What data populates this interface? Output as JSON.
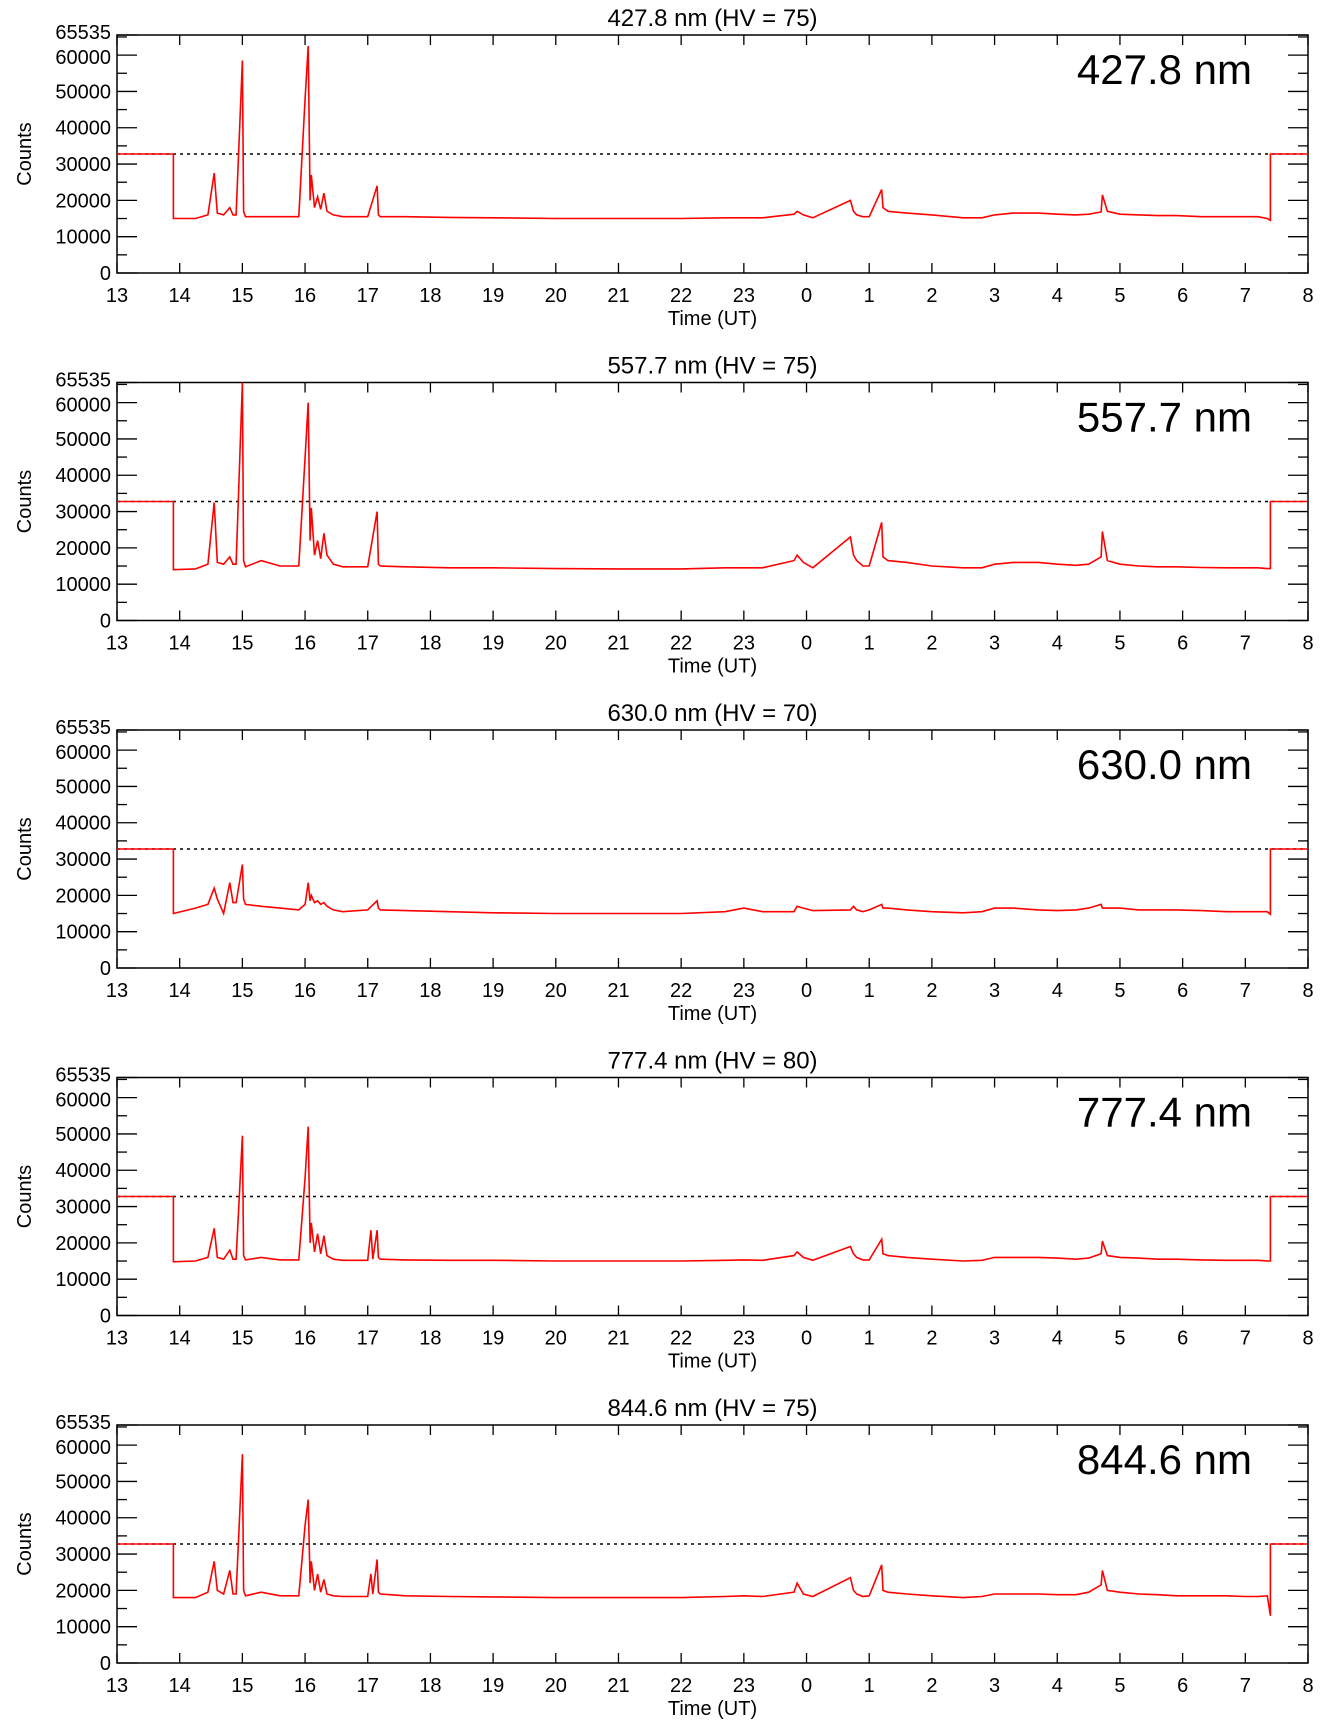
{
  "figure": {
    "ylabel": "Counts",
    "xlabel": "Time (UT)",
    "xtick_labels": [
      "13",
      "14",
      "15",
      "16",
      "17",
      "18",
      "19",
      "20",
      "21",
      "22",
      "23",
      "0",
      "1",
      "2",
      "3",
      "4",
      "5",
      "6",
      "7",
      "8"
    ],
    "ytick_labels": [
      "0",
      "10000",
      "20000",
      "30000",
      "40000",
      "50000",
      "60000",
      "65535"
    ],
    "colors": {
      "series": "#ff0000",
      "axes": "#000000",
      "threshold": "#000000"
    }
  },
  "chart_data": [
    {
      "type": "line",
      "title": "427.8 nm (HV = 75)",
      "big_label": "427.8 nm",
      "xlabel": "Time (UT)",
      "ylabel": "Counts",
      "xlim": [
        13,
        32
      ],
      "ylim": [
        0,
        65535
      ],
      "threshold": 32768,
      "series": [
        {
          "name": "427.8 nm",
          "x": [
            13.9,
            13.9,
            14.25,
            14.45,
            14.55,
            14.6,
            14.7,
            14.8,
            14.85,
            14.9,
            15.0,
            15.02,
            15.05,
            15.3,
            15.6,
            15.9,
            16.0,
            16.05,
            16.08,
            16.1,
            16.15,
            16.2,
            16.25,
            16.3,
            16.35,
            16.45,
            16.6,
            17.0,
            17.15,
            17.17,
            17.2,
            17.6,
            18.3,
            19.0,
            20.0,
            21.0,
            22.0,
            22.7,
            23.0,
            23.3,
            23.8,
            23.85,
            23.95,
            24.1,
            24.7,
            24.75,
            24.8,
            24.9,
            25.0,
            25.2,
            25.22,
            25.3,
            25.6,
            26.0,
            26.5,
            26.8,
            27.0,
            27.3,
            27.7,
            28.0,
            28.3,
            28.5,
            28.7,
            28.72,
            28.8,
            29.0,
            29.3,
            29.6,
            29.9,
            30.3,
            30.7,
            31.0,
            31.2,
            31.35,
            31.4,
            31.4
          ],
          "y": [
            32768,
            15000,
            15000,
            16000,
            27500,
            16500,
            16000,
            18000,
            16000,
            16000,
            58500,
            17000,
            15500,
            15500,
            15500,
            15500,
            48000,
            62500,
            20000,
            27000,
            18000,
            21000,
            17500,
            22000,
            17000,
            16000,
            15500,
            15500,
            24000,
            16000,
            15500,
            15500,
            15300,
            15200,
            15000,
            15000,
            15000,
            15200,
            15200,
            15200,
            16200,
            17000,
            16000,
            15200,
            20000,
            17000,
            16000,
            15500,
            15500,
            23000,
            18000,
            17000,
            16500,
            16000,
            15200,
            15200,
            16000,
            16500,
            16500,
            16200,
            16000,
            16200,
            16800,
            21500,
            17000,
            16200,
            16000,
            15800,
            15800,
            15500,
            15500,
            15500,
            15500,
            15000,
            14500,
            32768
          ]
        }
      ]
    },
    {
      "type": "line",
      "title": "557.7 nm (HV = 75)",
      "big_label": "557.7 nm",
      "xlabel": "Time (UT)",
      "ylabel": "Counts",
      "xlim": [
        13,
        32
      ],
      "ylim": [
        0,
        65535
      ],
      "threshold": 32768,
      "series": [
        {
          "name": "557.7 nm",
          "x": [
            13.9,
            13.9,
            14.25,
            14.45,
            14.55,
            14.6,
            14.7,
            14.8,
            14.85,
            14.9,
            15.0,
            15.02,
            15.05,
            15.3,
            15.6,
            15.9,
            16.0,
            16.05,
            16.08,
            16.1,
            16.15,
            16.2,
            16.25,
            16.3,
            16.35,
            16.45,
            16.6,
            17.0,
            17.15,
            17.17,
            17.2,
            17.6,
            18.3,
            19.0,
            20.0,
            21.0,
            22.0,
            22.7,
            23.0,
            23.3,
            23.8,
            23.85,
            23.95,
            24.1,
            24.7,
            24.75,
            24.8,
            24.9,
            25.0,
            25.2,
            25.22,
            25.3,
            25.6,
            26.0,
            26.5,
            26.8,
            27.0,
            27.3,
            27.7,
            28.0,
            28.3,
            28.5,
            28.7,
            28.72,
            28.8,
            29.0,
            29.3,
            29.6,
            29.9,
            30.3,
            30.7,
            31.0,
            31.2,
            31.35,
            31.4,
            31.4
          ],
          "y": [
            32768,
            14000,
            14200,
            15500,
            32500,
            16000,
            15500,
            17500,
            15500,
            15500,
            65535,
            16500,
            14800,
            16500,
            15000,
            15000,
            45000,
            60000,
            22000,
            31000,
            18000,
            22000,
            17000,
            24000,
            18000,
            15500,
            14800,
            14800,
            30000,
            15500,
            15000,
            14800,
            14500,
            14500,
            14300,
            14200,
            14200,
            14500,
            14500,
            14500,
            16500,
            18000,
            16000,
            14500,
            23000,
            18000,
            16500,
            15000,
            15000,
            27000,
            17500,
            16500,
            16000,
            15000,
            14500,
            14500,
            15500,
            16000,
            16000,
            15500,
            15200,
            15500,
            17500,
            24500,
            16500,
            15500,
            15000,
            14800,
            14800,
            14600,
            14500,
            14500,
            14500,
            14300,
            14300,
            32768
          ]
        }
      ]
    },
    {
      "type": "line",
      "title": "630.0 nm (HV = 70)",
      "big_label": "630.0 nm",
      "xlabel": "Time (UT)",
      "ylabel": "Counts",
      "xlim": [
        13,
        32
      ],
      "ylim": [
        0,
        65535
      ],
      "threshold": 32768,
      "series": [
        {
          "name": "630.0 nm",
          "x": [
            13.9,
            13.9,
            14.25,
            14.45,
            14.55,
            14.6,
            14.7,
            14.8,
            14.85,
            14.9,
            15.0,
            15.02,
            15.05,
            15.3,
            15.6,
            15.9,
            16.0,
            16.05,
            16.08,
            16.1,
            16.15,
            16.2,
            16.25,
            16.3,
            16.35,
            16.45,
            16.6,
            17.0,
            17.15,
            17.17,
            17.2,
            17.6,
            18.3,
            19.0,
            20.0,
            21.0,
            22.0,
            22.7,
            23.0,
            23.3,
            23.8,
            23.85,
            23.95,
            24.1,
            24.7,
            24.75,
            24.8,
            24.9,
            25.0,
            25.2,
            25.22,
            25.3,
            25.6,
            26.0,
            26.5,
            26.8,
            27.0,
            27.3,
            27.7,
            28.0,
            28.3,
            28.5,
            28.7,
            28.72,
            28.8,
            29.0,
            29.3,
            29.6,
            29.9,
            30.3,
            30.7,
            31.0,
            31.2,
            31.35,
            31.4,
            31.4
          ],
          "y": [
            32768,
            15000,
            16500,
            17500,
            22000,
            19000,
            15000,
            23500,
            18000,
            18000,
            28500,
            19000,
            17500,
            17000,
            16500,
            16000,
            17500,
            23500,
            18500,
            20000,
            18000,
            18500,
            17500,
            18000,
            17000,
            16000,
            15500,
            16000,
            18500,
            16500,
            16000,
            15800,
            15500,
            15200,
            15000,
            15000,
            15000,
            15500,
            16500,
            15500,
            15500,
            17000,
            16500,
            15800,
            16000,
            17000,
            16000,
            15500,
            16000,
            17500,
            16500,
            16500,
            16000,
            15500,
            15200,
            15500,
            16500,
            16500,
            16000,
            15800,
            16000,
            16500,
            17500,
            16500,
            16500,
            16500,
            16000,
            16000,
            16000,
            15800,
            15500,
            15500,
            15500,
            15500,
            14800,
            32768
          ]
        }
      ]
    },
    {
      "type": "line",
      "title": "777.4 nm (HV = 80)",
      "big_label": "777.4 nm",
      "xlabel": "Time (UT)",
      "ylabel": "Counts",
      "xlim": [
        13,
        32
      ],
      "ylim": [
        0,
        65535
      ],
      "threshold": 32768,
      "series": [
        {
          "name": "777.4 nm",
          "x": [
            13.9,
            13.9,
            14.25,
            14.45,
            14.55,
            14.6,
            14.7,
            14.8,
            14.85,
            14.9,
            15.0,
            15.02,
            15.05,
            15.3,
            15.6,
            15.9,
            16.0,
            16.05,
            16.08,
            16.1,
            16.15,
            16.2,
            16.25,
            16.3,
            16.35,
            16.45,
            16.6,
            17.0,
            17.05,
            17.08,
            17.15,
            17.17,
            17.2,
            17.6,
            18.3,
            19.0,
            20.0,
            21.0,
            22.0,
            22.7,
            23.0,
            23.3,
            23.8,
            23.85,
            23.95,
            24.1,
            24.7,
            24.75,
            24.8,
            24.9,
            25.0,
            25.2,
            25.22,
            25.3,
            25.6,
            26.0,
            26.5,
            26.8,
            27.0,
            27.3,
            27.7,
            28.0,
            28.3,
            28.5,
            28.7,
            28.72,
            28.8,
            29.0,
            29.3,
            29.6,
            29.9,
            30.3,
            30.7,
            31.0,
            31.2,
            31.35,
            31.4,
            31.4
          ],
          "y": [
            32768,
            14800,
            15000,
            16000,
            24000,
            16000,
            15500,
            18000,
            15500,
            15500,
            49500,
            16500,
            15300,
            16000,
            15300,
            15300,
            38000,
            52000,
            20000,
            25500,
            17500,
            22500,
            17000,
            22000,
            16500,
            15500,
            15200,
            15200,
            23500,
            15500,
            23500,
            16000,
            15500,
            15300,
            15200,
            15200,
            15000,
            15000,
            15000,
            15200,
            15300,
            15200,
            16500,
            17500,
            16000,
            15200,
            19000,
            17000,
            16000,
            15300,
            15300,
            21000,
            17000,
            16500,
            16000,
            15500,
            15000,
            15200,
            16000,
            16000,
            16000,
            15800,
            15500,
            15800,
            17000,
            20500,
            16500,
            16000,
            15800,
            15500,
            15500,
            15300,
            15200,
            15200,
            15200,
            15000,
            15000,
            32768
          ]
        }
      ]
    },
    {
      "type": "line",
      "title": "844.6 nm (HV = 75)",
      "big_label": "844.6 nm",
      "xlabel": "Time (UT)",
      "ylabel": "Counts",
      "xlim": [
        13,
        32
      ],
      "ylim": [
        0,
        65535
      ],
      "threshold": 32768,
      "series": [
        {
          "name": "844.6 nm",
          "x": [
            13.9,
            13.9,
            14.25,
            14.45,
            14.55,
            14.6,
            14.7,
            14.8,
            14.85,
            14.9,
            15.0,
            15.02,
            15.05,
            15.3,
            15.6,
            15.9,
            16.0,
            16.05,
            16.08,
            16.1,
            16.15,
            16.2,
            16.25,
            16.3,
            16.35,
            16.45,
            16.6,
            17.0,
            17.05,
            17.08,
            17.15,
            17.17,
            17.2,
            17.6,
            18.3,
            19.0,
            20.0,
            21.0,
            22.0,
            22.7,
            23.0,
            23.3,
            23.8,
            23.85,
            23.95,
            24.1,
            24.7,
            24.75,
            24.8,
            24.9,
            25.0,
            25.2,
            25.22,
            25.3,
            25.6,
            26.0,
            26.5,
            26.8,
            27.0,
            27.3,
            27.7,
            28.0,
            28.3,
            28.5,
            28.7,
            28.72,
            28.8,
            29.0,
            29.3,
            29.6,
            29.9,
            30.3,
            30.7,
            31.0,
            31.2,
            31.35,
            31.4,
            31.4
          ],
          "y": [
            32768,
            18000,
            18000,
            19500,
            28000,
            20000,
            19000,
            25500,
            19000,
            19000,
            57500,
            20000,
            18500,
            19500,
            18500,
            18500,
            38000,
            45000,
            22000,
            28000,
            20000,
            24500,
            19500,
            23000,
            19000,
            18500,
            18300,
            18300,
            24500,
            19000,
            28500,
            19500,
            19000,
            18500,
            18300,
            18200,
            18000,
            18000,
            18000,
            18300,
            18500,
            18300,
            19500,
            22000,
            19000,
            18300,
            23500,
            20000,
            19000,
            18300,
            18500,
            27000,
            20000,
            19500,
            19000,
            18500,
            18000,
            18300,
            19000,
            19000,
            19000,
            18800,
            18800,
            19500,
            21500,
            25500,
            20000,
            19500,
            19000,
            18800,
            18500,
            18500,
            18500,
            18300,
            18300,
            18500,
            13000,
            32768
          ]
        }
      ]
    }
  ]
}
